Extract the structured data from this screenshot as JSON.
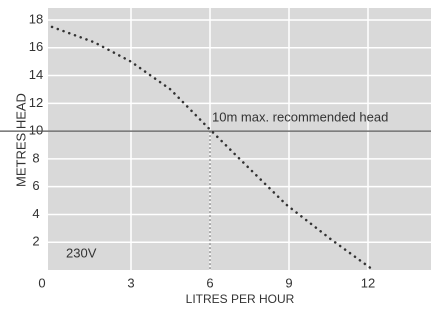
{
  "chart_data": {
    "type": "line",
    "x_label": "LITRES PER HOUR",
    "y_label": "METRES HEAD",
    "annotation": "230V",
    "x": [
      0,
      1.6,
      3,
      4.5,
      5.9,
      7.5,
      8.9,
      10.6,
      12.2
    ],
    "series": [
      {
        "color": "#333333",
        "values": [
          17.5,
          16.4,
          15,
          13,
          10.3,
          7.3,
          4.7,
          2.2,
          0
        ]
      }
    ],
    "reference_line": {
      "value": 10,
      "label": "10m max. recommended head"
    },
    "marker_x": 6,
    "xlim": [
      0,
      15
    ],
    "xticks": [
      0,
      3,
      6,
      9,
      12
    ],
    "ylim": [
      0,
      18
    ],
    "yticks": [
      2,
      4,
      6,
      8,
      10,
      12,
      14,
      16,
      18
    ],
    "background": "#d9d9d9",
    "grid": true
  }
}
